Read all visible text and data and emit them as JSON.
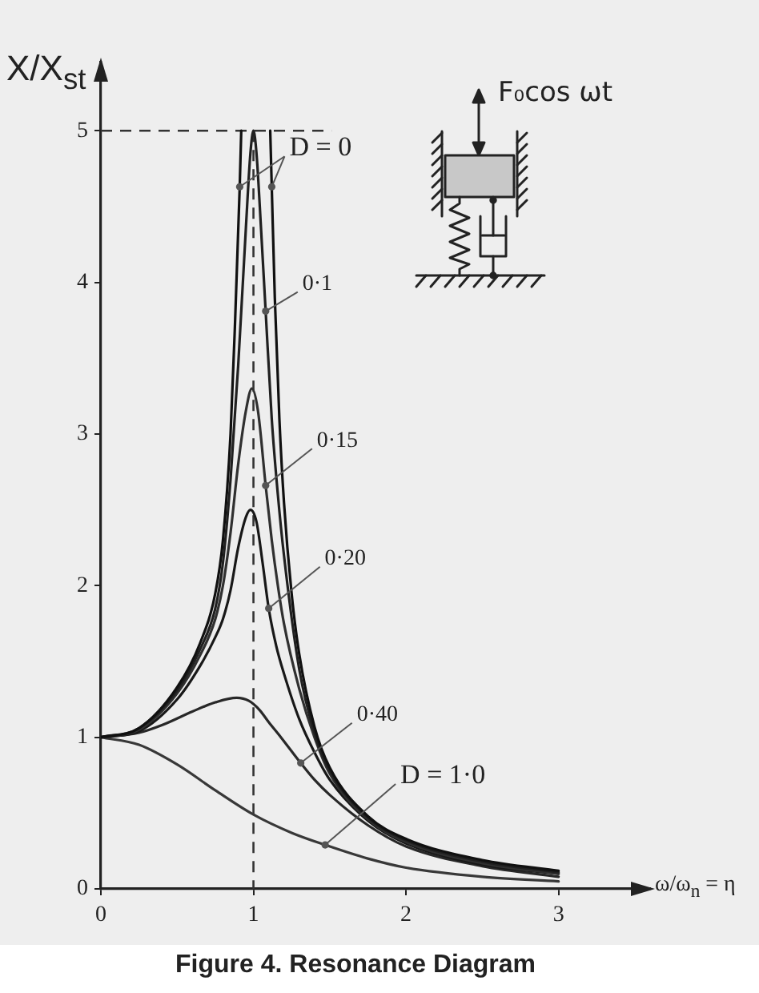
{
  "chart_data": {
    "type": "line",
    "title": "Figure 4. Resonance Diagram",
    "xlabel": "ω/ω$_{n}$ = η",
    "ylabel": "X/X$_{st}$",
    "xlim": [
      0,
      3.6
    ],
    "ylim": [
      0,
      5.45
    ],
    "xticks": [
      0,
      1,
      2,
      3
    ],
    "yticks": [
      0,
      1,
      2,
      3,
      4,
      5
    ],
    "grid": false,
    "legend": false,
    "marker": "none",
    "ref_lines": [
      {
        "axis": "x",
        "value": 1,
        "line_style": "dashed",
        "color": "#333333"
      },
      {
        "axis": "y",
        "value": 5,
        "line_style": "dashed",
        "color": "#333333"
      }
    ],
    "annotations": [
      "F₀cos ωt"
    ],
    "series": [
      {
        "name": "D = 0",
        "color": "#101010",
        "x": [
          0,
          0.25,
          0.5,
          0.65,
          0.75,
          0.8,
          0.85,
          0.88,
          0.91,
          0.92,
          1.0,
          1.11,
          1.12,
          1.14,
          1.17,
          1.2,
          1.25,
          1.3,
          1.4,
          1.5,
          1.75,
          2.0,
          2.5,
          3.0
        ],
        "values": [
          1,
          1.06,
          1.33,
          1.62,
          1.95,
          2.3,
          3.0,
          3.75,
          4.63,
          5.0,
          null,
          5.0,
          4.63,
          3.9,
          3.1,
          2.55,
          1.95,
          1.55,
          1.07,
          0.8,
          0.48,
          0.33,
          0.19,
          0.12
        ]
      },
      {
        "name": "0·1",
        "color": "#202020",
        "x": [
          0,
          0.25,
          0.5,
          0.65,
          0.75,
          0.8,
          0.85,
          0.9,
          0.95,
          0.98,
          1.0,
          1.02,
          1.05,
          1.08,
          1.12,
          1.16,
          1.2,
          1.3,
          1.4,
          1.5,
          1.75,
          2.0,
          2.5,
          3.0
        ],
        "values": [
          1,
          1.06,
          1.31,
          1.58,
          1.85,
          2.15,
          2.7,
          3.45,
          4.35,
          4.85,
          5.0,
          4.85,
          4.35,
          3.81,
          3.1,
          2.6,
          2.2,
          1.45,
          1.03,
          0.78,
          0.47,
          0.32,
          0.18,
          0.11
        ]
      },
      {
        "name": "0·15",
        "color": "#303030",
        "x": [
          0,
          0.25,
          0.5,
          0.65,
          0.75,
          0.8,
          0.85,
          0.9,
          0.95,
          0.99,
          1.03,
          1.08,
          1.12,
          1.16,
          1.2,
          1.3,
          1.4,
          1.5,
          1.75,
          2.0,
          2.5,
          3.0
        ],
        "values": [
          1,
          1.05,
          1.29,
          1.54,
          1.78,
          2.0,
          2.35,
          2.8,
          3.15,
          3.3,
          3.15,
          2.66,
          2.3,
          2.0,
          1.75,
          1.32,
          1.0,
          0.76,
          0.46,
          0.31,
          0.17,
          0.1
        ]
      },
      {
        "name": "0·20",
        "color": "#181818",
        "x": [
          0,
          0.25,
          0.5,
          0.65,
          0.75,
          0.8,
          0.85,
          0.9,
          0.95,
          0.98,
          1.02,
          1.06,
          1.1,
          1.15,
          1.2,
          1.3,
          1.4,
          1.5,
          1.75,
          2.0,
          2.5,
          3.0
        ],
        "values": [
          1,
          1.04,
          1.25,
          1.47,
          1.66,
          1.78,
          1.97,
          2.25,
          2.45,
          2.5,
          2.42,
          2.15,
          1.85,
          1.6,
          1.42,
          1.12,
          0.9,
          0.72,
          0.45,
          0.3,
          0.16,
          0.1
        ]
      },
      {
        "name": "0·40",
        "color": "#282828",
        "x": [
          0,
          0.25,
          0.4,
          0.6,
          0.75,
          0.89,
          0.97,
          1.04,
          1.1,
          1.18,
          1.31,
          1.4,
          1.5,
          1.75,
          2.0,
          2.5,
          3.0
        ],
        "values": [
          1,
          1.03,
          1.08,
          1.17,
          1.23,
          1.26,
          1.24,
          1.18,
          1.1,
          1.0,
          0.83,
          0.72,
          0.62,
          0.42,
          0.28,
          0.15,
          0.08
        ]
      },
      {
        "name": "D = 1·0",
        "color": "#383838",
        "x": [
          0,
          0.25,
          0.5,
          0.75,
          1.0,
          1.25,
          1.47,
          1.75,
          2.0,
          2.5,
          3.0
        ],
        "values": [
          1,
          0.95,
          0.82,
          0.65,
          0.49,
          0.37,
          0.29,
          0.2,
          0.14,
          0.08,
          0.05
        ]
      }
    ]
  }
}
